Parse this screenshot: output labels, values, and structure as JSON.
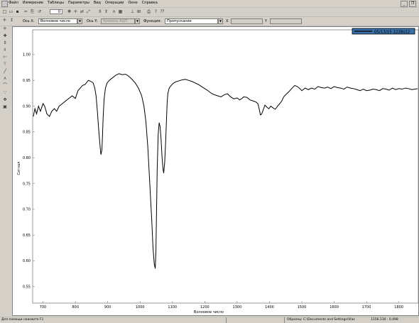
{
  "menu": {
    "items": [
      "Файл",
      "Измерение",
      "Таблицы",
      "Параметры",
      "Вид",
      "Операции",
      "Окно",
      "Справка"
    ]
  },
  "toolbar": {
    "counter_value": "0"
  },
  "toolbar2": {
    "x_axis_label": "Ось X:",
    "x_axis_value": "Волновое число",
    "y_axis_label": "Ось Y:",
    "y_axis_value": "Уровень АЦП",
    "function_label": "Функция:",
    "function_value": "Пропускание",
    "x_readout_label": "X",
    "y_readout_label": "Y"
  },
  "legend": {
    "entry": "05/13/15 1228s12"
  },
  "chart_data": {
    "type": "line",
    "xlabel": "Волновое число",
    "ylabel": "Сигнал",
    "xlim": [
      668,
      1860
    ],
    "ylim": [
      0.518,
      1.048
    ],
    "xticks": [
      700,
      800,
      900,
      1000,
      1100,
      1200,
      1300,
      1400,
      1500,
      1600,
      1700,
      1800
    ],
    "xtick_labels": [
      "700",
      "800",
      "900",
      "1000",
      "1100",
      "1200",
      "1300",
      "1400",
      "1500",
      "1600",
      "1700",
      "1800"
    ],
    "yticks": [
      0.55,
      0.6,
      0.65,
      0.7,
      0.75,
      0.8,
      0.85,
      0.9,
      0.95,
      1.0
    ],
    "ytick_labels": [
      "0.55",
      "0.60",
      "0.65",
      "0.70",
      "0.75",
      "0.80",
      "0.85",
      "0.90",
      "0.95",
      "1.00"
    ],
    "grid": false,
    "legend_position": "top-right",
    "series": [
      {
        "name": "05/13/15 1228s12",
        "color": "#000000",
        "x": [
          670,
          675,
          680,
          686,
          692,
          700,
          705,
          712,
          720,
          727,
          735,
          742,
          750,
          760,
          770,
          780,
          790,
          800,
          808,
          815,
          822,
          830,
          840,
          848,
          855,
          860,
          864,
          868,
          872,
          876,
          879,
          882,
          884,
          886,
          889,
          893,
          898,
          905,
          915,
          925,
          935,
          945,
          955,
          965,
          975,
          985,
          995,
          1005,
          1012,
          1018,
          1024,
          1030,
          1036,
          1040,
          1044,
          1047,
          1049,
          1051,
          1053,
          1056,
          1059,
          1062,
          1065,
          1068,
          1071,
          1073,
          1076,
          1079,
          1082,
          1084,
          1086,
          1090,
          1096,
          1102,
          1110,
          1120,
          1130,
          1140,
          1150,
          1160,
          1170,
          1180,
          1190,
          1200,
          1210,
          1220,
          1230,
          1240,
          1250,
          1260,
          1270,
          1280,
          1290,
          1300,
          1308,
          1315,
          1320,
          1330,
          1340,
          1350,
          1358,
          1364,
          1368,
          1372,
          1375,
          1378,
          1382,
          1386,
          1392,
          1398,
          1404,
          1410,
          1418,
          1425,
          1432,
          1438,
          1444,
          1450,
          1460,
          1470,
          1478,
          1486,
          1494,
          1500,
          1510,
          1520,
          1530,
          1540,
          1550,
          1560,
          1570,
          1580,
          1590,
          1600,
          1610,
          1620,
          1630,
          1640,
          1650,
          1660,
          1670,
          1680,
          1690,
          1700,
          1710,
          1720,
          1730,
          1740,
          1750,
          1760,
          1770,
          1780,
          1790,
          1800,
          1810,
          1820,
          1830,
          1840,
          1850,
          1858
        ],
        "y": [
          0.88,
          0.895,
          0.885,
          0.9,
          0.89,
          0.905,
          0.9,
          0.885,
          0.88,
          0.89,
          0.895,
          0.89,
          0.9,
          0.905,
          0.91,
          0.915,
          0.92,
          0.915,
          0.93,
          0.935,
          0.94,
          0.942,
          0.95,
          0.948,
          0.945,
          0.935,
          0.92,
          0.89,
          0.855,
          0.825,
          0.806,
          0.815,
          0.845,
          0.88,
          0.915,
          0.935,
          0.945,
          0.95,
          0.955,
          0.96,
          0.963,
          0.961,
          0.962,
          0.958,
          0.952,
          0.945,
          0.935,
          0.92,
          0.9,
          0.87,
          0.82,
          0.75,
          0.68,
          0.625,
          0.593,
          0.585,
          0.62,
          0.7,
          0.78,
          0.845,
          0.868,
          0.86,
          0.835,
          0.8,
          0.778,
          0.77,
          0.79,
          0.83,
          0.88,
          0.91,
          0.925,
          0.935,
          0.94,
          0.944,
          0.947,
          0.949,
          0.951,
          0.952,
          0.95,
          0.948,
          0.945,
          0.942,
          0.938,
          0.934,
          0.93,
          0.925,
          0.922,
          0.92,
          0.918,
          0.922,
          0.924,
          0.918,
          0.914,
          0.916,
          0.912,
          0.915,
          0.918,
          0.917,
          0.912,
          0.91,
          0.908,
          0.905,
          0.895,
          0.883,
          0.884,
          0.888,
          0.895,
          0.902,
          0.898,
          0.895,
          0.9,
          0.897,
          0.894,
          0.9,
          0.905,
          0.91,
          0.918,
          0.922,
          0.928,
          0.935,
          0.94,
          0.938,
          0.934,
          0.93,
          0.935,
          0.932,
          0.935,
          0.933,
          0.938,
          0.936,
          0.935,
          0.937,
          0.934,
          0.938,
          0.936,
          0.935,
          0.933,
          0.937,
          0.935,
          0.934,
          0.932,
          0.93,
          0.933,
          0.93,
          0.931,
          0.933,
          0.932,
          0.93,
          0.934,
          0.933,
          0.931,
          0.935,
          0.932,
          0.934,
          0.933,
          0.935,
          0.934,
          0.932,
          0.933,
          0.934
        ]
      }
    ]
  },
  "status": {
    "hint": "Для помощи нажмите F1",
    "path": "Образец: C:\\Documents and Settings\\Vlas",
    "coords": "1156.130 : 0.498"
  }
}
